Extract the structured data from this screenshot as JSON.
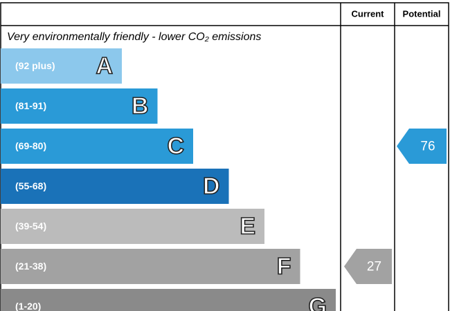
{
  "chart_data": {
    "type": "epc",
    "header": {
      "current": "Current",
      "potential": "Potential"
    },
    "top_note": "Very environmentally friendly - lower CO₂ emissions",
    "bands": [
      {
        "letter": "A",
        "range": "(92 plus)",
        "color": "#8cc8ec"
      },
      {
        "letter": "B",
        "range": "(81-91)",
        "color": "#2a9ad7"
      },
      {
        "letter": "C",
        "range": "(69-80)",
        "color": "#2a9ad7"
      },
      {
        "letter": "D",
        "range": "(55-68)",
        "color": "#1a72b8"
      },
      {
        "letter": "E",
        "range": "(39-54)",
        "color": "#bbbbbb"
      },
      {
        "letter": "F",
        "range": "(21-38)",
        "color": "#a2a2a2"
      },
      {
        "letter": "G",
        "range": "(1-20)",
        "color": "#8a8a8a"
      }
    ],
    "current": 27,
    "potential": 76
  }
}
